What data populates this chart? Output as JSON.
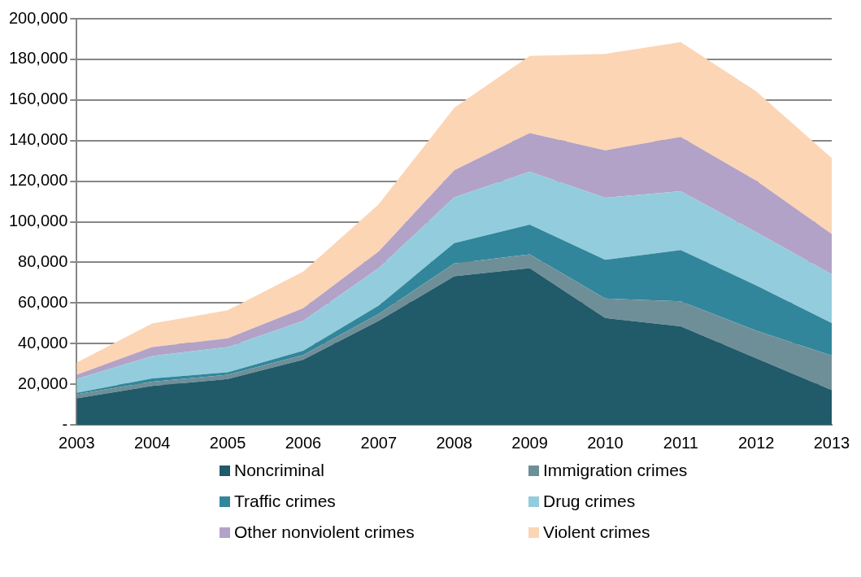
{
  "chart_data": {
    "type": "area",
    "stacked": true,
    "categories": [
      "2003",
      "2004",
      "2005",
      "2006",
      "2007",
      "2008",
      "2009",
      "2010",
      "2011",
      "2012",
      "2013"
    ],
    "series": [
      {
        "name": "Noncriminal",
        "color": "#215a69",
        "values": [
          13000,
          19100,
          22500,
          32100,
          51200,
          73100,
          77200,
          52600,
          48500,
          32800,
          17100
        ]
      },
      {
        "name": "Immigration crimes",
        "color": "#6f8f98",
        "values": [
          2000,
          2100,
          2100,
          2300,
          3400,
          6400,
          6800,
          9600,
          12300,
          13600,
          17000
        ]
      },
      {
        "name": "Traffic crimes",
        "color": "#31869b",
        "values": [
          700,
          1600,
          1300,
          2100,
          4100,
          10000,
          14600,
          19100,
          25300,
          22200,
          16000
        ]
      },
      {
        "name": "Drug crimes",
        "color": "#93cddd",
        "values": [
          6800,
          11100,
          12400,
          14700,
          18500,
          22500,
          26000,
          30500,
          28900,
          26300,
          24000
        ]
      },
      {
        "name": "Other nonviolent crimes",
        "color": "#b3a2c7",
        "values": [
          2100,
          4400,
          4300,
          6200,
          8200,
          13400,
          19100,
          23400,
          26800,
          25300,
          19900
        ]
      },
      {
        "name": "Violent crimes",
        "color": "#fcd5b5",
        "values": [
          6100,
          11600,
          13800,
          18100,
          23200,
          30700,
          38000,
          47500,
          46700,
          44000,
          37400
        ]
      }
    ],
    "ylim": [
      0,
      200000
    ],
    "yticks": [
      {
        "value": 0,
        "label": "-"
      },
      {
        "value": 20000,
        "label": "20,000"
      },
      {
        "value": 40000,
        "label": "40,000"
      },
      {
        "value": 60000,
        "label": "60,000"
      },
      {
        "value": 80000,
        "label": "80,000"
      },
      {
        "value": 100000,
        "label": "100,000"
      },
      {
        "value": 120000,
        "label": "120,000"
      },
      {
        "value": 140000,
        "label": "140,000"
      },
      {
        "value": 160000,
        "label": "160,000"
      },
      {
        "value": 180000,
        "label": "180,000"
      },
      {
        "value": 200000,
        "label": "200,000"
      }
    ],
    "grid": "y",
    "legend": "bottom"
  }
}
